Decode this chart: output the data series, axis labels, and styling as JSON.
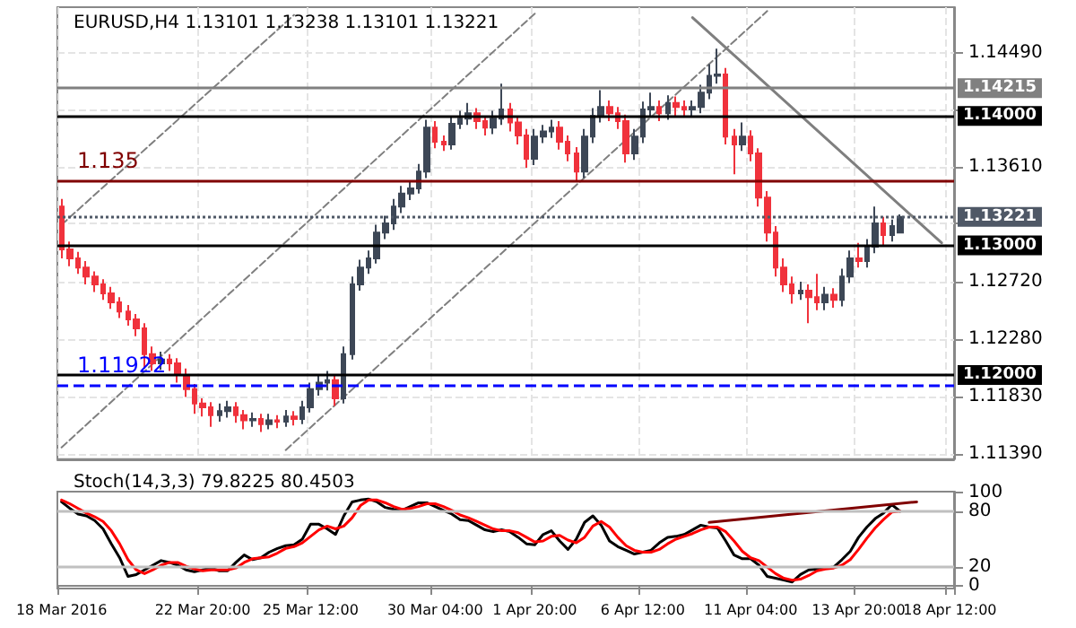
{
  "chart_data": [
    {
      "type": "candlestick",
      "title": "EURUSD,H4 1.13101 1.13238 1.13101 1.13221",
      "ohlc": [
        [
          1.133,
          1.1336,
          1.129,
          1.1297
        ],
        [
          1.1297,
          1.1303,
          1.1284,
          1.129
        ],
        [
          1.129,
          1.1295,
          1.1278,
          1.1283
        ],
        [
          1.1283,
          1.1288,
          1.127,
          1.1276
        ],
        [
          1.1276,
          1.128,
          1.1264,
          1.127
        ],
        [
          1.127,
          1.1274,
          1.1258,
          1.1263
        ],
        [
          1.1263,
          1.1268,
          1.1251,
          1.1256
        ],
        [
          1.1256,
          1.126,
          1.1244,
          1.1249
        ],
        [
          1.1249,
          1.1254,
          1.1238,
          1.1243
        ],
        [
          1.1243,
          1.1247,
          1.123,
          1.1236
        ],
        [
          1.1236,
          1.124,
          1.1205,
          1.1216
        ],
        [
          1.1216,
          1.1222,
          1.1203,
          1.1209
        ],
        [
          1.1209,
          1.1218,
          1.1204,
          1.1212
        ],
        [
          1.1212,
          1.1216,
          1.1203,
          1.1209
        ],
        [
          1.1209,
          1.1213,
          1.1194,
          1.12
        ],
        [
          1.12,
          1.1205,
          1.1183,
          1.1189
        ],
        [
          1.1189,
          1.1193,
          1.117,
          1.1178
        ],
        [
          1.1178,
          1.1182,
          1.1168,
          1.1175
        ],
        [
          1.1175,
          1.1179,
          1.116,
          1.1169
        ],
        [
          1.1169,
          1.1178,
          1.1164,
          1.1172
        ],
        [
          1.1172,
          1.118,
          1.1167,
          1.1175
        ],
        [
          1.1175,
          1.1179,
          1.1163,
          1.1169
        ],
        [
          1.1169,
          1.1173,
          1.1158,
          1.1165
        ],
        [
          1.1165,
          1.1171,
          1.116,
          1.1166
        ],
        [
          1.1166,
          1.117,
          1.1156,
          1.1162
        ],
        [
          1.1162,
          1.117,
          1.1158,
          1.1165
        ],
        [
          1.1165,
          1.1169,
          1.1159,
          1.1164
        ],
        [
          1.1164,
          1.1173,
          1.116,
          1.1168
        ],
        [
          1.1168,
          1.1172,
          1.1161,
          1.1166
        ],
        [
          1.1166,
          1.118,
          1.1162,
          1.1175
        ],
        [
          1.1175,
          1.1194,
          1.1171,
          1.1189
        ],
        [
          1.1189,
          1.12,
          1.1184,
          1.1194
        ],
        [
          1.1194,
          1.1203,
          1.1188,
          1.1196
        ],
        [
          1.1196,
          1.12,
          1.1176,
          1.1182
        ],
        [
          1.1182,
          1.1222,
          1.1178,
          1.1216
        ],
        [
          1.1216,
          1.1276,
          1.1212,
          1.127
        ],
        [
          1.127,
          1.1289,
          1.1265,
          1.1283
        ],
        [
          1.1283,
          1.1296,
          1.1278,
          1.129
        ],
        [
          1.129,
          1.1316,
          1.1286,
          1.131
        ],
        [
          1.131,
          1.1323,
          1.1305,
          1.1317
        ],
        [
          1.1317,
          1.1336,
          1.1312,
          1.133
        ],
        [
          1.133,
          1.1346,
          1.1325,
          1.134
        ],
        [
          1.134,
          1.135,
          1.1335,
          1.1344
        ],
        [
          1.1344,
          1.1363,
          1.134,
          1.1357
        ],
        [
          1.1357,
          1.1397,
          1.1352,
          1.1391
        ],
        [
          1.1391,
          1.1396,
          1.1375,
          1.138
        ],
        [
          1.138,
          1.1385,
          1.1373,
          1.1378
        ],
        [
          1.1378,
          1.14,
          1.1374,
          1.1394
        ],
        [
          1.1394,
          1.1404,
          1.139,
          1.1398
        ],
        [
          1.1398,
          1.141,
          1.1393,
          1.1402
        ],
        [
          1.1402,
          1.1406,
          1.139,
          1.1396
        ],
        [
          1.1396,
          1.14,
          1.1385,
          1.1391
        ],
        [
          1.1391,
          1.1404,
          1.1386,
          1.1398
        ],
        [
          1.1398,
          1.1425,
          1.1393,
          1.1405
        ],
        [
          1.1405,
          1.141,
          1.1388,
          1.1395
        ],
        [
          1.1395,
          1.14,
          1.1378,
          1.1385
        ],
        [
          1.1385,
          1.139,
          1.136,
          1.1367
        ],
        [
          1.1367,
          1.139,
          1.1362,
          1.1384
        ],
        [
          1.1384,
          1.1393,
          1.1379,
          1.1388
        ],
        [
          1.1388,
          1.1397,
          1.1383,
          1.1391
        ],
        [
          1.1391,
          1.1396,
          1.1374,
          1.138
        ],
        [
          1.138,
          1.1385,
          1.1365,
          1.1371
        ],
        [
          1.1371,
          1.1376,
          1.135,
          1.1357
        ],
        [
          1.1357,
          1.139,
          1.1352,
          1.1384
        ],
        [
          1.1384,
          1.1406,
          1.1379,
          1.14
        ],
        [
          1.14,
          1.142,
          1.1395,
          1.1407
        ],
        [
          1.1407,
          1.1412,
          1.1396,
          1.1402
        ],
        [
          1.1402,
          1.1407,
          1.139,
          1.1396
        ],
        [
          1.1396,
          1.1401,
          1.1364,
          1.1371
        ],
        [
          1.1371,
          1.139,
          1.1366,
          1.1384
        ],
        [
          1.1384,
          1.1411,
          1.1379,
          1.1405
        ],
        [
          1.1405,
          1.1418,
          1.14,
          1.1407
        ],
        [
          1.1407,
          1.1412,
          1.1396,
          1.1402
        ],
        [
          1.1402,
          1.1416,
          1.1397,
          1.141
        ],
        [
          1.141,
          1.1415,
          1.14,
          1.1407
        ],
        [
          1.1407,
          1.1412,
          1.1399,
          1.1405
        ],
        [
          1.1405,
          1.1412,
          1.14,
          1.1407
        ],
        [
          1.1407,
          1.1424,
          1.1402,
          1.1418
        ],
        [
          1.1418,
          1.144,
          1.1413,
          1.1431
        ],
        [
          1.1431,
          1.1452,
          1.1425,
          1.1432
        ],
        [
          1.1432,
          1.1437,
          1.1378,
          1.1384
        ],
        [
          1.1384,
          1.139,
          1.1355,
          1.1378
        ],
        [
          1.1378,
          1.1395,
          1.1373,
          1.1384
        ],
        [
          1.1384,
          1.1389,
          1.1365,
          1.1371
        ],
        [
          1.1371,
          1.1375,
          1.133,
          1.1337
        ],
        [
          1.1337,
          1.1342,
          1.1303,
          1.131
        ],
        [
          1.131,
          1.1315,
          1.1276,
          1.1283
        ],
        [
          1.1283,
          1.129,
          1.1264,
          1.127
        ],
        [
          1.127,
          1.1276,
          1.1255,
          1.1263
        ],
        [
          1.1263,
          1.1272,
          1.1258,
          1.1265
        ],
        [
          1.1265,
          1.127,
          1.124,
          1.126
        ],
        [
          1.126,
          1.1278,
          1.125,
          1.1256
        ],
        [
          1.1256,
          1.1268,
          1.125,
          1.1262
        ],
        [
          1.1262,
          1.1267,
          1.1252,
          1.1258
        ],
        [
          1.1258,
          1.1282,
          1.1253,
          1.1276
        ],
        [
          1.1276,
          1.1296,
          1.1271,
          1.129
        ],
        [
          1.129,
          1.1302,
          1.1283,
          1.1288
        ],
        [
          1.1288,
          1.1305,
          1.1283,
          1.1299
        ],
        [
          1.1299,
          1.133,
          1.1294,
          1.1317
        ],
        [
          1.1317,
          1.1322,
          1.13,
          1.1308
        ],
        [
          1.1308,
          1.132,
          1.1303,
          1.1315
        ],
        [
          1.131,
          1.1324,
          1.131,
          1.1322
        ],
        null,
        null,
        null,
        null,
        null,
        null
      ],
      "colors": [
        "#f0323c",
        "#f0323c",
        "#f0323c",
        "#f0323c",
        "#f0323c",
        "#f0323c",
        "#f0323c",
        "#f0323c",
        "#f0323c",
        "#f0323c",
        "#f0323c",
        "#f0323c",
        "#3d4756",
        "#f0323c",
        "#f0323c",
        "#f0323c",
        "#f0323c",
        "#f0323c",
        "#f0323c",
        "#3d4756",
        "#3d4756",
        "#f0323c",
        "#f0323c",
        "#3d4756",
        "#f0323c",
        "#3d4756",
        "#f0323c",
        "#3d4756",
        "#f0323c",
        "#3d4756",
        "#3d4756",
        "#3d4756",
        "#3d4756",
        "#f0323c",
        "#3d4756",
        "#3d4756",
        "#3d4756",
        "#3d4756",
        "#3d4756",
        "#3d4756",
        "#3d4756",
        "#3d4756",
        "#3d4756",
        "#3d4756",
        "#3d4756",
        "#f0323c",
        "#f0323c",
        "#3d4756",
        "#3d4756",
        "#3d4756",
        "#f0323c",
        "#f0323c",
        "#3d4756",
        "#3d4756",
        "#f0323c",
        "#f0323c",
        "#f0323c",
        "#3d4756",
        "#3d4756",
        "#3d4756",
        "#f0323c",
        "#f0323c",
        "#f0323c",
        "#3d4756",
        "#3d4756",
        "#3d4756",
        "#f0323c",
        "#f0323c",
        "#f0323c",
        "#3d4756",
        "#3d4756",
        "#3d4756",
        "#f0323c",
        "#3d4756",
        "#f0323c",
        "#f0323c",
        "#3d4756",
        "#3d4756",
        "#3d4756",
        "#3d4756",
        "#f0323c",
        "#f0323c",
        "#3d4756",
        "#f0323c",
        "#f0323c",
        "#f0323c",
        "#f0323c",
        "#f0323c",
        "#f0323c",
        "#3d4756",
        "#f0323c",
        "#f0323c",
        "#3d4756",
        "#f0323c",
        "#3d4756",
        "#3d4756",
        "#f0323c",
        "#3d4756",
        "#3d4756",
        "#f0323c",
        "#3d4756",
        "#3d4756",
        null,
        null,
        null,
        null,
        null,
        null
      ],
      "series": [
        {
          "type": "line",
          "color": "#7f7f7f",
          "line_style": "solid",
          "values": [
            null,
            null,
            null,
            null,
            null,
            null,
            null,
            null,
            null,
            null,
            null,
            null,
            null,
            null,
            null,
            null,
            null,
            null,
            null,
            null,
            null,
            null,
            null,
            null,
            null,
            null,
            null,
            null,
            null,
            null,
            null,
            null,
            null,
            null,
            null,
            null,
            null,
            null,
            null,
            null,
            null,
            null,
            null,
            null,
            null,
            null,
            null,
            null,
            null,
            null,
            null,
            null,
            null,
            null,
            null,
            null,
            null,
            null,
            null,
            null,
            null,
            null,
            null,
            null,
            null,
            null,
            null,
            null,
            null,
            null,
            null,
            null,
            null,
            null,
            null,
            null,
            1.1476,
            null,
            null,
            null,
            null,
            null,
            null,
            null,
            null,
            null,
            null,
            null,
            null,
            null,
            null,
            null,
            null,
            null,
            null,
            null,
            null,
            null,
            null,
            null,
            null,
            null,
            null,
            null,
            null,
            null,
            1.1302,
            null
          ]
        },
        {
          "type": "line",
          "color": "#7f7f7f",
          "line_style": "dashed",
          "values": [
            1.1316,
            null,
            null,
            null,
            null,
            null,
            null,
            null,
            null,
            null,
            null,
            null,
            null,
            null,
            null,
            null,
            null,
            null,
            null,
            null,
            null,
            null,
            null,
            null,
            null,
            null,
            null,
            null,
            1.1478,
            null,
            null,
            null,
            null,
            null,
            null,
            null,
            null,
            null,
            null,
            null,
            null,
            null,
            null,
            null,
            null,
            null,
            null,
            null,
            null,
            null,
            null,
            null,
            null,
            null,
            null,
            null,
            null,
            null,
            null,
            null,
            null,
            null,
            null,
            null,
            null,
            null,
            null,
            null,
            null,
            null,
            null,
            null,
            null,
            null,
            null,
            null,
            null,
            null,
            null,
            null,
            null,
            null,
            null,
            null,
            null,
            null,
            null,
            null,
            null,
            null,
            null,
            null,
            null,
            null,
            null,
            null,
            null,
            null,
            null,
            null,
            null,
            null,
            null,
            null,
            null,
            null,
            null,
            null
          ]
        },
        {
          "type": "line",
          "color": "#7f7f7f",
          "line_style": "dashed",
          "values": [
            1.1144,
            null,
            null,
            null,
            null,
            null,
            null,
            null,
            null,
            null,
            null,
            null,
            null,
            null,
            null,
            null,
            null,
            null,
            null,
            null,
            null,
            null,
            null,
            null,
            null,
            null,
            null,
            null,
            null,
            null,
            null,
            null,
            null,
            null,
            null,
            null,
            null,
            null,
            null,
            null,
            null,
            null,
            null,
            null,
            null,
            null,
            null,
            null,
            null,
            null,
            null,
            null,
            null,
            null,
            null,
            null,
            null,
            1.1479,
            null,
            null,
            null,
            null,
            null,
            null,
            null,
            null,
            null,
            null,
            null,
            null,
            null,
            null,
            null,
            null,
            null,
            null,
            null,
            null,
            null,
            null,
            null,
            null,
            null,
            null,
            null,
            null,
            null,
            null,
            null,
            null,
            null,
            null,
            null,
            null,
            null,
            null,
            null,
            null,
            null,
            null,
            null,
            null,
            null,
            null,
            null,
            null,
            null,
            null
          ]
        },
        {
          "type": "line",
          "color": "#7f7f7f",
          "line_style": "dashed",
          "values": [
            null,
            null,
            null,
            null,
            null,
            null,
            null,
            null,
            null,
            null,
            null,
            null,
            null,
            null,
            null,
            null,
            null,
            null,
            null,
            null,
            null,
            null,
            null,
            null,
            null,
            null,
            null,
            1.1142,
            null,
            null,
            null,
            null,
            null,
            null,
            null,
            null,
            null,
            null,
            null,
            null,
            null,
            null,
            null,
            null,
            null,
            null,
            null,
            null,
            null,
            null,
            null,
            null,
            null,
            null,
            null,
            null,
            null,
            null,
            null,
            null,
            null,
            null,
            null,
            null,
            null,
            null,
            null,
            null,
            null,
            null,
            null,
            null,
            null,
            null,
            null,
            null,
            null,
            null,
            null,
            null,
            null,
            null,
            null,
            null,
            null,
            1.1481,
            null,
            null,
            null,
            null,
            null,
            null,
            null,
            null,
            null,
            null,
            null,
            null,
            null,
            null,
            null,
            null,
            null,
            null,
            null,
            null,
            null,
            null
          ]
        }
      ],
      "ylim": [
        1.1135,
        1.1484
      ],
      "yticks": [
        {
          "value": 1.1449,
          "label": "1.14490"
        },
        {
          "value": 1.1405,
          "label": null
        },
        {
          "value": 1.1361,
          "label": "1.13610"
        },
        {
          "value": 1.1317,
          "label": null
        },
        {
          "value": 1.1272,
          "label": "1.12720"
        },
        {
          "value": 1.1228,
          "label": "1.12280"
        },
        {
          "value": 1.1183,
          "label": "1.11830"
        },
        {
          "value": 1.1139,
          "label": "1.11390"
        }
      ],
      "ref_lines": [
        {
          "axis": "y",
          "value": 1.14215,
          "label": "1.14215",
          "color": "#808080",
          "line_style": "solid"
        },
        {
          "axis": "y",
          "value": 1.14,
          "label": "1.14000",
          "color": "#000000",
          "line_style": "solid"
        },
        {
          "axis": "y",
          "value": 1.135,
          "label": "1.135",
          "color": "#800000",
          "line_style": "solid"
        },
        {
          "axis": "y",
          "value": 1.13221,
          "label": "1.13221",
          "color": "#4f5866",
          "line_style": "dotted"
        },
        {
          "axis": "y",
          "value": 1.13,
          "label": "1.13000",
          "color": "#000000",
          "line_style": "solid"
        },
        {
          "axis": "y",
          "value": 1.12,
          "label": "1.12000",
          "color": "#000000",
          "line_style": "solid"
        },
        {
          "axis": "y",
          "value": 1.11922,
          "label": "1.11922",
          "color": "#0000ff",
          "line_style": "dashed"
        }
      ],
      "grid": true,
      "tick_labels": "y"
    },
    {
      "type": "line",
      "title": "Stoch(14,3,3) 79.8225 80.4503",
      "categories": [
        "18 Mar 2016",
        null,
        null,
        null,
        null,
        null,
        null,
        null,
        null,
        null,
        null,
        null,
        null,
        null,
        null,
        null,
        null,
        "22 Mar 20:00",
        null,
        null,
        null,
        null,
        null,
        null,
        null,
        null,
        null,
        null,
        null,
        null,
        "25 Mar 12:00",
        null,
        null,
        null,
        null,
        null,
        null,
        null,
        null,
        null,
        null,
        null,
        null,
        null,
        null,
        "30 Mar 04:00",
        null,
        null,
        null,
        null,
        null,
        null,
        null,
        null,
        null,
        null,
        null,
        "1 Apr 20:00",
        null,
        null,
        null,
        null,
        null,
        null,
        null,
        null,
        null,
        null,
        null,
        null,
        "6 Apr 12:00",
        null,
        null,
        null,
        null,
        null,
        null,
        null,
        null,
        null,
        null,
        null,
        null,
        "11 Apr 04:00",
        null,
        null,
        null,
        null,
        null,
        null,
        null,
        null,
        null,
        null,
        null,
        null,
        "13 Apr 20:00",
        null,
        null,
        null,
        null,
        null,
        null,
        null,
        null,
        null,
        null,
        "18 Apr 12:00"
      ],
      "series": [
        {
          "color": "#000000",
          "values": [
            90,
            83,
            77,
            75,
            70,
            61,
            45,
            30,
            10,
            12,
            17,
            22,
            27,
            25,
            22,
            17,
            15,
            17,
            19,
            16,
            16,
            25,
            33,
            28,
            30,
            36,
            40,
            43,
            44,
            50,
            66,
            66,
            61,
            55,
            75,
            90,
            92,
            93,
            90,
            84,
            82,
            81,
            85,
            89,
            89,
            85,
            81,
            77,
            71,
            70,
            65,
            60,
            58,
            60,
            58,
            52,
            45,
            44,
            55,
            59,
            48,
            39,
            50,
            68,
            75,
            65,
            48,
            42,
            38,
            34,
            36,
            38,
            46,
            52,
            53,
            55,
            60,
            65,
            63,
            62,
            48,
            33,
            29,
            29,
            22,
            10,
            8,
            6,
            4,
            12,
            17,
            18,
            19,
            20,
            28,
            37,
            52,
            63,
            72,
            78,
            87,
            80,
            null,
            null,
            null,
            null,
            null,
            null
          ]
        },
        {
          "color": "#ff0000",
          "values": [
            92,
            88,
            83,
            78,
            74,
            69,
            59,
            45,
            28,
            17,
            13,
            17,
            22,
            25,
            25,
            21,
            18,
            16,
            17,
            17,
            17,
            19,
            25,
            29,
            30,
            31,
            35,
            40,
            42,
            46,
            53,
            60,
            64,
            61,
            64,
            73,
            86,
            92,
            92,
            89,
            85,
            82,
            83,
            85,
            88,
            88,
            85,
            81,
            76,
            73,
            69,
            65,
            61,
            59,
            59,
            57,
            52,
            47,
            48,
            53,
            54,
            49,
            46,
            52,
            64,
            69,
            63,
            52,
            43,
            38,
            36,
            36,
            39,
            45,
            50,
            53,
            56,
            60,
            63,
            63,
            58,
            48,
            37,
            30,
            27,
            20,
            13,
            8,
            6,
            7,
            11,
            16,
            18,
            19,
            22,
            28,
            39,
            51,
            62,
            71,
            79,
            80,
            null,
            null,
            null,
            null,
            null,
            null
          ]
        },
        {
          "color": "#800000",
          "values": [
            null,
            null,
            null,
            null,
            null,
            null,
            null,
            null,
            null,
            null,
            null,
            null,
            null,
            null,
            null,
            null,
            null,
            null,
            null,
            null,
            null,
            null,
            null,
            null,
            null,
            null,
            null,
            null,
            null,
            null,
            null,
            null,
            null,
            null,
            null,
            null,
            null,
            null,
            null,
            null,
            null,
            null,
            null,
            null,
            null,
            null,
            null,
            null,
            null,
            null,
            null,
            null,
            null,
            null,
            null,
            null,
            null,
            null,
            null,
            null,
            null,
            null,
            null,
            null,
            null,
            null,
            null,
            null,
            null,
            null,
            null,
            null,
            null,
            null,
            null,
            null,
            null,
            null,
            68,
            null,
            null,
            null,
            null,
            null,
            null,
            null,
            null,
            null,
            null,
            null,
            null,
            null,
            null,
            null,
            null,
            null,
            null,
            null,
            null,
            null,
            null,
            null,
            null,
            90,
            null,
            null,
            null,
            null
          ]
        }
      ],
      "ylim": [
        -3,
        101
      ],
      "yticks": [
        0,
        20,
        80,
        100
      ],
      "ref_lines": [
        {
          "axis": "y",
          "value": 80,
          "color": "#c0c0c0"
        },
        {
          "axis": "y",
          "value": 20,
          "color": "#c0c0c0"
        }
      ],
      "grid": false,
      "marker": "none",
      "line_style": "solid"
    }
  ]
}
